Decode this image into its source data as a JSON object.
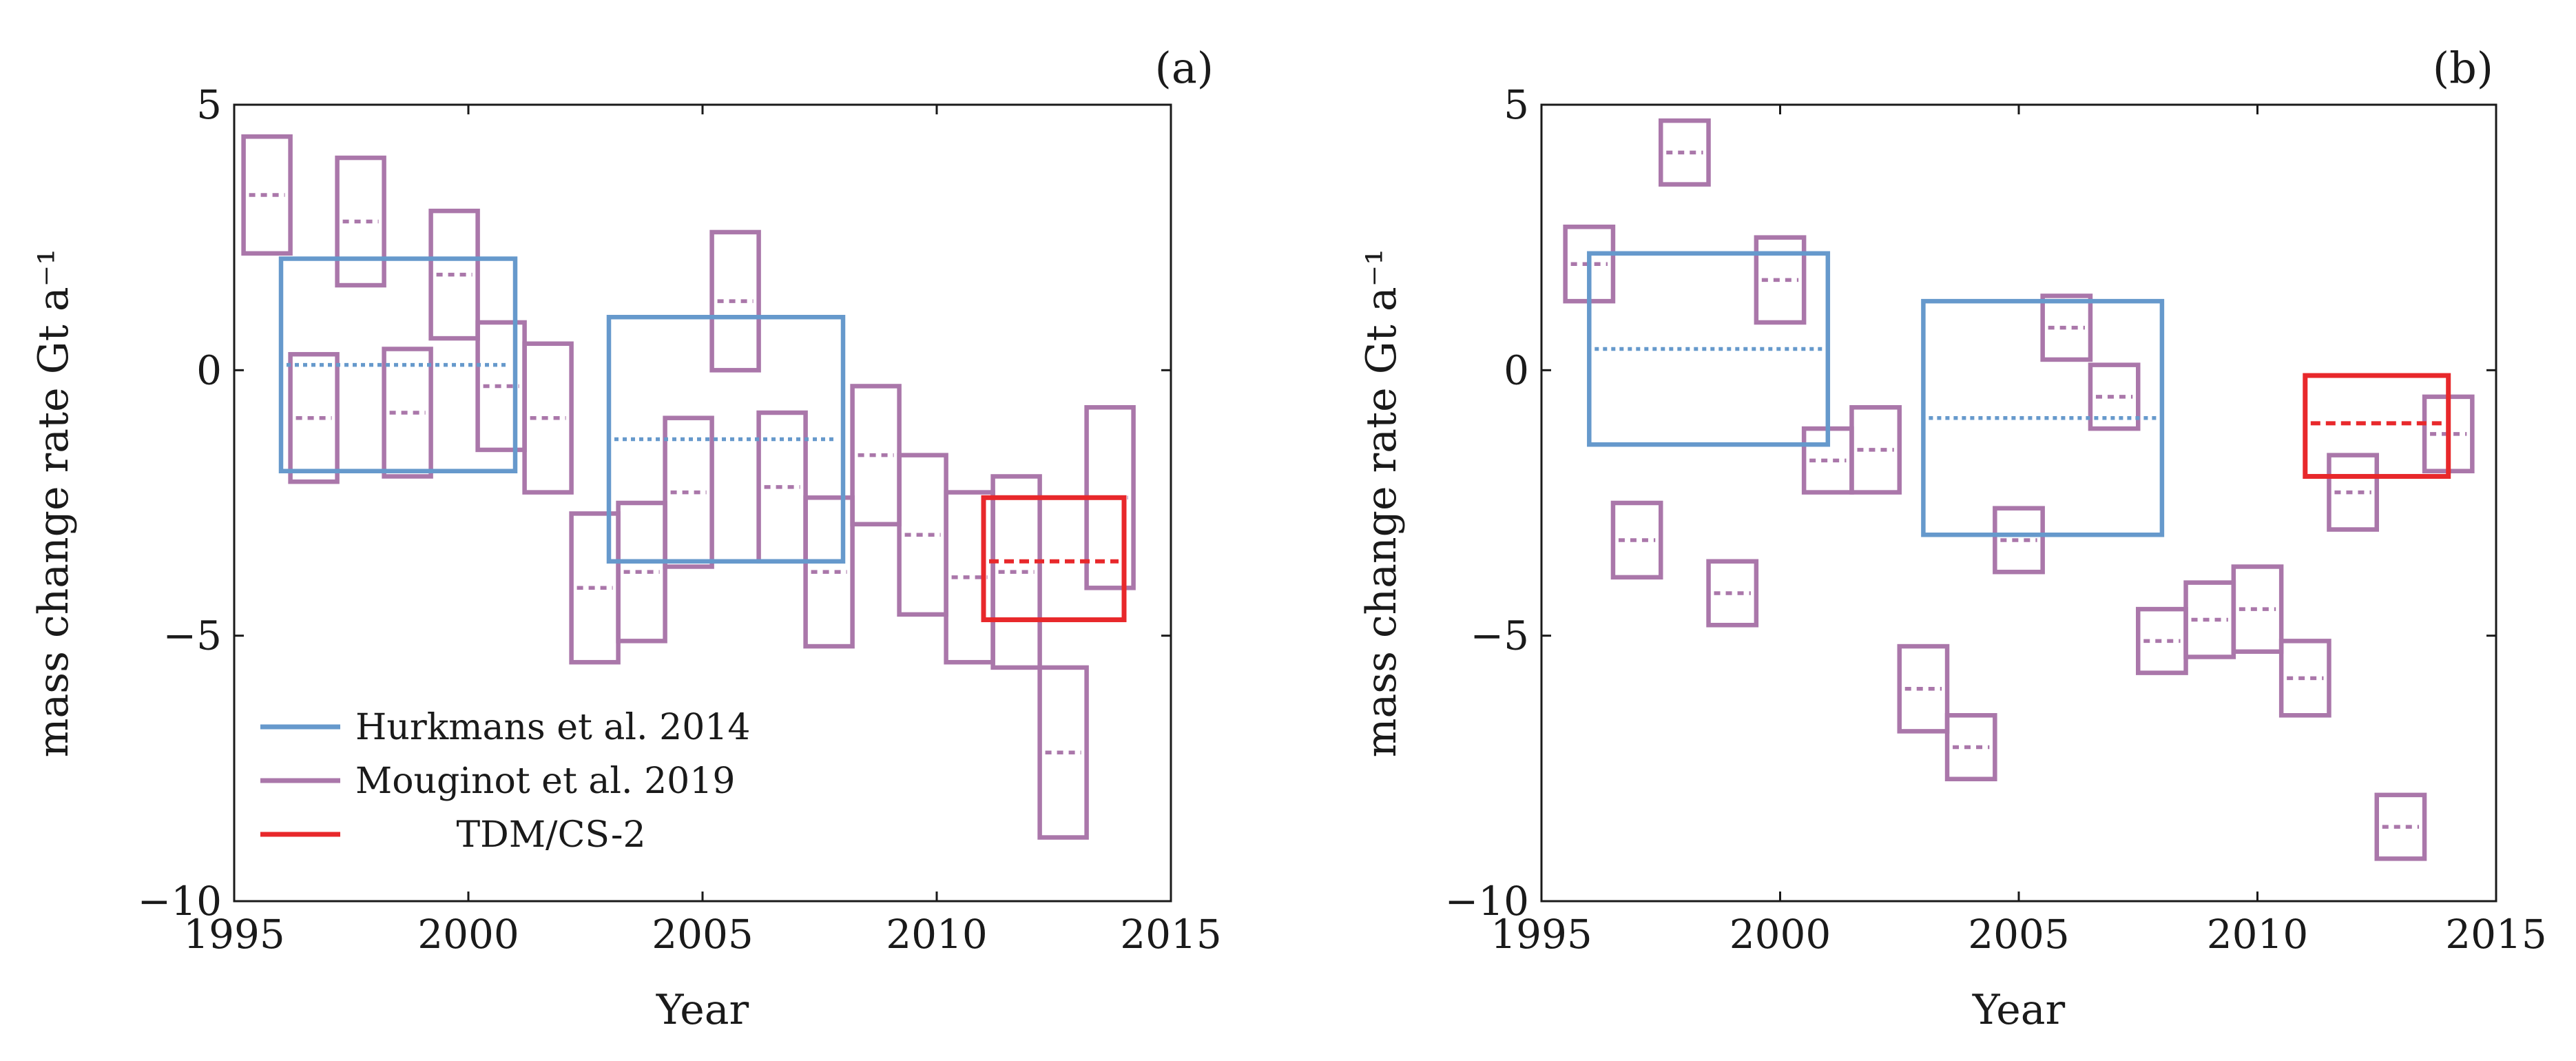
{
  "chart_data": [
    {
      "panel": "(a)",
      "type": "box-range",
      "xlabel": "Year",
      "ylabel": "mass change rate Gt a⁻¹",
      "xlim": [
        1995,
        2015
      ],
      "ylim": [
        -10,
        5
      ],
      "xticks": [
        "1995",
        "2000",
        "2005",
        "2010",
        "2015"
      ],
      "yticks": [
        "5",
        "0",
        "−5",
        "−10"
      ],
      "legend": {
        "position": "bottom-left",
        "entries": [
          {
            "name": "Hurkmans et al. 2014",
            "color": "#6699cc"
          },
          {
            "name": "Mouginot et al. 2019",
            "color": "#aa77aa"
          },
          {
            "name": "TDM/CS-2",
            "color": "#e8282b"
          }
        ]
      },
      "series": [
        {
          "name": "Hurkmans et al. 2014",
          "color": "#6699cc",
          "boxes": [
            {
              "x0": 1996,
              "x1": 2001,
              "low": -1.9,
              "high": 2.1,
              "mid": 0.1
            },
            {
              "x0": 2003,
              "x1": 2008,
              "low": -3.6,
              "high": 1.0,
              "mid": -1.3
            }
          ]
        },
        {
          "name": "Mouginot et al. 2019",
          "color": "#aa77aa",
          "boxes": [
            {
              "x0": 1995.2,
              "x1": 1996.2,
              "low": 2.2,
              "high": 4.4,
              "mid": 3.3
            },
            {
              "x0": 1996.2,
              "x1": 1997.2,
              "low": -2.1,
              "high": 0.3,
              "mid": -0.9
            },
            {
              "x0": 1997.2,
              "x1": 1998.2,
              "low": 1.6,
              "high": 4.0,
              "mid": 2.8
            },
            {
              "x0": 1998.2,
              "x1": 1999.2,
              "low": -2.0,
              "high": 0.4,
              "mid": -0.8
            },
            {
              "x0": 1999.2,
              "x1": 2000.2,
              "low": 0.6,
              "high": 3.0,
              "mid": 1.8
            },
            {
              "x0": 2000.2,
              "x1": 2001.2,
              "low": -1.5,
              "high": 0.9,
              "mid": -0.3
            },
            {
              "x0": 2001.2,
              "x1": 2002.2,
              "low": -2.3,
              "high": 0.5,
              "mid": -0.9
            },
            {
              "x0": 2002.2,
              "x1": 2003.2,
              "low": -5.5,
              "high": -2.7,
              "mid": -4.1
            },
            {
              "x0": 2003.2,
              "x1": 2004.2,
              "low": -5.1,
              "high": -2.5,
              "mid": -3.8
            },
            {
              "x0": 2004.2,
              "x1": 2005.2,
              "low": -3.7,
              "high": -0.9,
              "mid": -2.3
            },
            {
              "x0": 2005.2,
              "x1": 2006.2,
              "low": 0.0,
              "high": 2.6,
              "mid": 1.3
            },
            {
              "x0": 2006.2,
              "x1": 2007.2,
              "low": -3.6,
              "high": -0.8,
              "mid": -2.2
            },
            {
              "x0": 2007.2,
              "x1": 2008.2,
              "low": -5.2,
              "high": -2.4,
              "mid": -3.8
            },
            {
              "x0": 2008.2,
              "x1": 2009.2,
              "low": -2.9,
              "high": -0.3,
              "mid": -1.6
            },
            {
              "x0": 2009.2,
              "x1": 2010.2,
              "low": -4.6,
              "high": -1.6,
              "mid": -3.1
            },
            {
              "x0": 2010.2,
              "x1": 2011.2,
              "low": -5.5,
              "high": -2.3,
              "mid": -3.9
            },
            {
              "x0": 2011.2,
              "x1": 2012.2,
              "low": -5.6,
              "high": -2.0,
              "mid": -3.8
            },
            {
              "x0": 2012.2,
              "x1": 2013.2,
              "low": -8.8,
              "high": -5.6,
              "mid": -7.2
            },
            {
              "x0": 2013.2,
              "x1": 2014.2,
              "low": -4.1,
              "high": -0.7,
              "mid": -2.4
            }
          ]
        },
        {
          "name": "TDM/CS-2",
          "color": "#e8282b",
          "boxes": [
            {
              "x0": 2011,
              "x1": 2014,
              "low": -4.7,
              "high": -2.4,
              "mid": -3.6
            }
          ]
        }
      ]
    },
    {
      "panel": "(b)",
      "type": "box-range",
      "xlabel": "Year",
      "ylabel": "mass change rate Gt a⁻¹",
      "xlim": [
        1995,
        2015
      ],
      "ylim": [
        -10,
        5
      ],
      "xticks": [
        "1995",
        "2000",
        "2005",
        "2010",
        "2015"
      ],
      "yticks": [
        "5",
        "0",
        "−5",
        "−10"
      ],
      "series": [
        {
          "name": "Hurkmans et al. 2014",
          "color": "#6699cc",
          "boxes": [
            {
              "x0": 1996,
              "x1": 2001,
              "low": -1.4,
              "high": 2.2,
              "mid": 0.4
            },
            {
              "x0": 2003,
              "x1": 2008,
              "low": -3.1,
              "high": 1.3,
              "mid": -0.9
            }
          ]
        },
        {
          "name": "Mouginot et al. 2019",
          "color": "#aa77aa",
          "boxes": [
            {
              "x0": 1995.5,
              "x1": 1996.5,
              "low": 1.3,
              "high": 2.7,
              "mid": 2.0
            },
            {
              "x0": 1996.5,
              "x1": 1997.5,
              "low": -3.9,
              "high": -2.5,
              "mid": -3.2
            },
            {
              "x0": 1997.5,
              "x1": 1998.5,
              "low": 3.5,
              "high": 4.7,
              "mid": 4.1
            },
            {
              "x0": 1998.5,
              "x1": 1999.5,
              "low": -4.8,
              "high": -3.6,
              "mid": -4.2
            },
            {
              "x0": 1999.5,
              "x1": 2000.5,
              "low": 0.9,
              "high": 2.5,
              "mid": 1.7
            },
            {
              "x0": 2000.5,
              "x1": 2001.5,
              "low": -2.3,
              "high": -1.1,
              "mid": -1.7
            },
            {
              "x0": 2001.5,
              "x1": 2002.5,
              "low": -2.3,
              "high": -0.7,
              "mid": -1.5
            },
            {
              "x0": 2002.5,
              "x1": 2003.5,
              "low": -6.8,
              "high": -5.2,
              "mid": -6.0
            },
            {
              "x0": 2003.5,
              "x1": 2004.5,
              "low": -7.7,
              "high": -6.5,
              "mid": -7.1
            },
            {
              "x0": 2004.5,
              "x1": 2005.5,
              "low": -3.8,
              "high": -2.6,
              "mid": -3.2
            },
            {
              "x0": 2005.5,
              "x1": 2006.5,
              "low": 0.2,
              "high": 1.4,
              "mid": 0.8
            },
            {
              "x0": 2006.5,
              "x1": 2007.5,
              "low": -1.1,
              "high": 0.1,
              "mid": -0.5
            },
            {
              "x0": 2007.5,
              "x1": 2008.5,
              "low": -5.7,
              "high": -4.5,
              "mid": -5.1
            },
            {
              "x0": 2008.5,
              "x1": 2009.5,
              "low": -5.4,
              "high": -4.0,
              "mid": -4.7
            },
            {
              "x0": 2009.5,
              "x1": 2010.5,
              "low": -5.3,
              "high": -3.7,
              "mid": -4.5
            },
            {
              "x0": 2010.5,
              "x1": 2011.5,
              "low": -6.5,
              "high": -5.1,
              "mid": -5.8
            },
            {
              "x0": 2011.5,
              "x1": 2012.5,
              "low": -3.0,
              "high": -1.6,
              "mid": -2.3
            },
            {
              "x0": 2012.5,
              "x1": 2013.5,
              "low": -9.2,
              "high": -8.0,
              "mid": -8.6
            },
            {
              "x0": 2013.5,
              "x1": 2014.5,
              "low": -1.9,
              "high": -0.5,
              "mid": -1.2
            }
          ]
        },
        {
          "name": "TDM/CS-2",
          "color": "#e8282b",
          "boxes": [
            {
              "x0": 2011,
              "x1": 2014,
              "low": -2.0,
              "high": -0.1,
              "mid": -1.0
            }
          ]
        }
      ]
    }
  ]
}
